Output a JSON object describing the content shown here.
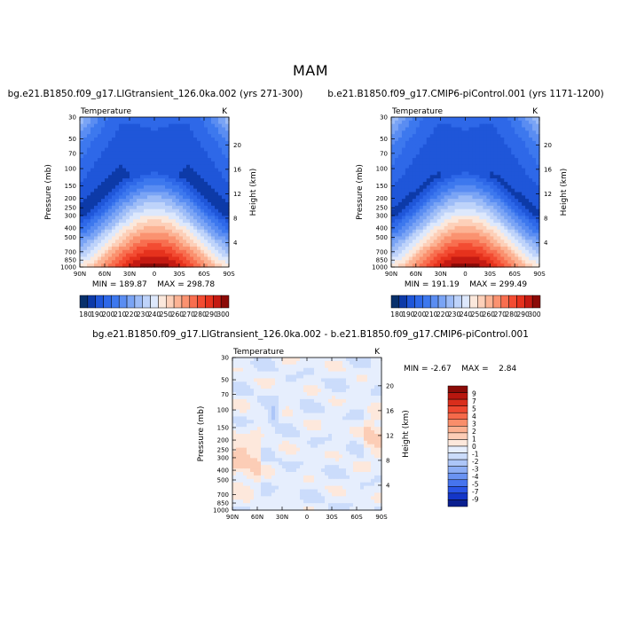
{
  "figure": {
    "title": "MAM"
  },
  "colors": {
    "levels": [
      "#08306b",
      "#0d3aa8",
      "#1f56d9",
      "#2e68e8",
      "#3d78ee",
      "#5a8df2",
      "#7aa4f5",
      "#9dbcf7",
      "#bed3fa",
      "#dde8fc",
      "#fbe8dc",
      "#fdd0b9",
      "#fcb394",
      "#fa9270",
      "#f86e4f",
      "#f34c32",
      "#e6321d",
      "#c41a12",
      "#8b0a07"
    ],
    "diff": [
      "#0a1f8f",
      "#1436c8",
      "#2a55e6",
      "#4674ee",
      "#6a93f2",
      "#8daef5",
      "#adc6f8",
      "#cbdcfb",
      "#e6eefd",
      "#fde8dc",
      "#fccdb6",
      "#fbb090",
      "#f98e6a",
      "#f5694a",
      "#ee4830",
      "#d92e1c",
      "#b8170f",
      "#8a0b07"
    ]
  },
  "chart_data": [
    {
      "type": "heatmap",
      "title": "bg.e21.B1850.f09_g17.LIGtransient_126.0ka.002 (yrs 271-300)",
      "subtitle_left": "Temperature",
      "subtitle_right": "K",
      "xlabel": "",
      "ylabel": "Pressure (mb)",
      "ylabel_right": "Height (km)",
      "x_ticks": [
        "90N",
        "60N",
        "30N",
        "0",
        "30S",
        "60S",
        "90S"
      ],
      "y_ticks": [
        "30",
        "50",
        "70",
        "100",
        "150",
        "200",
        "250",
        "300",
        "400",
        "500",
        "700",
        "850",
        "1000"
      ],
      "y_ticks_right": [
        "20",
        "16",
        "12",
        "8",
        "4"
      ],
      "stats": {
        "min_label": "MIN =",
        "min": "189.87",
        "max_label": "MAX =",
        "max": "298.78"
      },
      "colorbar_labels": [
        "180",
        "190",
        "200",
        "210",
        "220",
        "230",
        "240",
        "250",
        "260",
        "270",
        "280",
        "290",
        "300"
      ],
      "colorbar_orientation": "horizontal",
      "model": {
        "min": 189.87,
        "max": 298.78,
        "trop_min": 190,
        "trop_p": 100,
        "cap_p": 30
      }
    },
    {
      "type": "heatmap",
      "title": "b.e21.B1850.f09_g17.CMIP6-piControl.001 (yrs 1171-1200)",
      "subtitle_left": "Temperature",
      "subtitle_right": "K",
      "xlabel": "",
      "ylabel": "Pressure (mb)",
      "ylabel_right": "Height (km)",
      "x_ticks": [
        "90N",
        "60N",
        "30N",
        "0",
        "30S",
        "60S",
        "90S"
      ],
      "y_ticks": [
        "30",
        "50",
        "70",
        "100",
        "150",
        "200",
        "250",
        "300",
        "400",
        "500",
        "700",
        "850",
        "1000"
      ],
      "y_ticks_right": [
        "20",
        "16",
        "12",
        "8",
        "4"
      ],
      "stats": {
        "min_label": "MIN =",
        "min": "191.19",
        "max_label": "MAX =",
        "max": "299.49"
      },
      "colorbar_labels": [
        "180",
        "190",
        "200",
        "210",
        "220",
        "230",
        "240",
        "250",
        "260",
        "270",
        "280",
        "290",
        "300"
      ],
      "colorbar_orientation": "horizontal",
      "model": {
        "min": 191.19,
        "max": 299.49,
        "trop_min": 191.5,
        "trop_p": 100,
        "cap_p": 30
      }
    },
    {
      "type": "heatmap",
      "title": "bg.e21.B1850.f09_g17.LIGtransient_126.0ka.002 - b.e21.B1850.f09_g17.CMIP6-piControl.001",
      "subtitle_left": "Temperature",
      "subtitle_right": "K",
      "xlabel": "",
      "ylabel": "Pressure (mb)",
      "ylabel_right": "Height (km)",
      "x_ticks": [
        "90N",
        "60N",
        "30N",
        "0",
        "30S",
        "60S",
        "90S"
      ],
      "y_ticks": [
        "30",
        "50",
        "70",
        "100",
        "150",
        "200",
        "250",
        "300",
        "400",
        "500",
        "700",
        "850",
        "1000"
      ],
      "y_ticks_right": [
        "20",
        "16",
        "12",
        "8",
        "4"
      ],
      "stats": {
        "min_label": "MIN =",
        "min": "-2.67",
        "max_label": "MAX =",
        "max": "2.84"
      },
      "colorbar_labels": [
        "9",
        "7",
        "5",
        "4",
        "3",
        "2",
        "1",
        "0",
        "-1",
        "-2",
        "-3",
        "-4",
        "-5",
        "-7",
        "-9"
      ],
      "colorbar_orientation": "vertical",
      "model": {
        "min": -2.67,
        "max": 2.84
      }
    }
  ]
}
